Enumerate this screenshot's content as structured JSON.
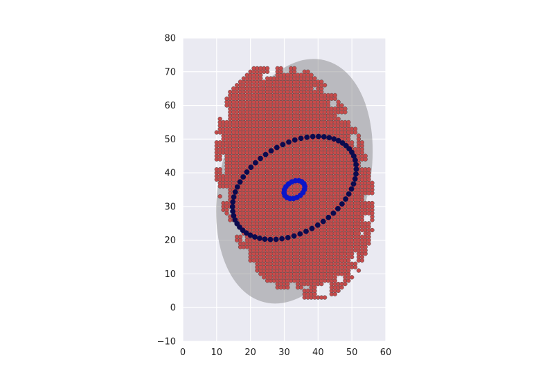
{
  "chart_data": {
    "type": "scatter",
    "title": "",
    "xlabel": "",
    "ylabel": "",
    "xlim": [
      0,
      60
    ],
    "ylim": [
      -10,
      80
    ],
    "x_ticks": [
      "0",
      "10",
      "20",
      "30",
      "40",
      "50",
      "60"
    ],
    "y_ticks": [
      "−10",
      "0",
      "10",
      "20",
      "30",
      "40",
      "50",
      "60",
      "70",
      "80"
    ],
    "grid": true,
    "legend": "none",
    "background_color": "#EAEAF2",
    "grid_color": "#FFFFFF",
    "shaded_ellipse": {
      "center": [
        33,
        37.5
      ],
      "semi_axes": [
        22,
        37
      ],
      "rotation_deg": 14,
      "color": "#808080",
      "opacity": 0.45
    },
    "series": [
      {
        "marker_color": "#C84B4B",
        "marker_edge": "#4A4A4A",
        "marker_radius": 0.6,
        "grid_step": 1,
        "region": {
          "center": [
            33,
            37.5
          ],
          "semi_axes": [
            22,
            35
          ],
          "rotation_deg": 14,
          "x_clip": [
            9,
            57
          ],
          "y_clip": [
            3,
            71
          ]
        }
      },
      {
        "marker_color": "#0B0B4F",
        "ring": {
          "center": [
            33,
            35.5
          ],
          "semi_axes": [
            20,
            13
          ],
          "rotation_deg": 32,
          "points": 64
        },
        "marker_radius": 0.75
      },
      {
        "marker_color": "#0A16C9",
        "ring": {
          "center": [
            33,
            35
          ],
          "semi_axes": [
            3.3,
            2.4
          ],
          "rotation_deg": 32,
          "points": 18
        },
        "marker_radius": 0.75
      }
    ]
  }
}
